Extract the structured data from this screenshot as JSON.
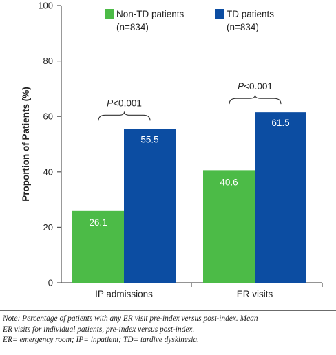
{
  "chart_data": {
    "type": "bar",
    "categories": [
      "IP admissions",
      "ER visits"
    ],
    "series": [
      {
        "name": "Non-TD patients",
        "n_label": "(n=834)",
        "color": "#4cbb47",
        "values": [
          26.1,
          40.6
        ],
        "value_labels": [
          "26.1",
          "40.6"
        ]
      },
      {
        "name": "TD patients",
        "n_label": "(n=834)",
        "color": "#0c4da2",
        "values": [
          55.5,
          61.5
        ],
        "value_labels": [
          "55.5",
          "61.5"
        ]
      }
    ],
    "ylabel": "Proportion of Patients (%)",
    "ylim": [
      0,
      100
    ],
    "yticks": [
      0,
      20,
      40,
      60,
      80,
      100
    ],
    "ytick_labels": [
      "0",
      "20",
      "40",
      "60",
      "80",
      "100"
    ],
    "legend_position": "top-right",
    "grid": false,
    "annotations": [
      {
        "category_index": 0,
        "text_italic": "P",
        "text_rest": "<0.001"
      },
      {
        "category_index": 1,
        "text_italic": "P",
        "text_rest": "<0.001"
      }
    ]
  },
  "note": {
    "line1": "Note: Percentage of patients with any ER visit pre-index versus post-index. Mean",
    "line2": "ER visits for individual patients, pre-index versus post-index.",
    "line3": "ER= emergency room; IP= inpatient; TD= tardive dyskinesia."
  }
}
